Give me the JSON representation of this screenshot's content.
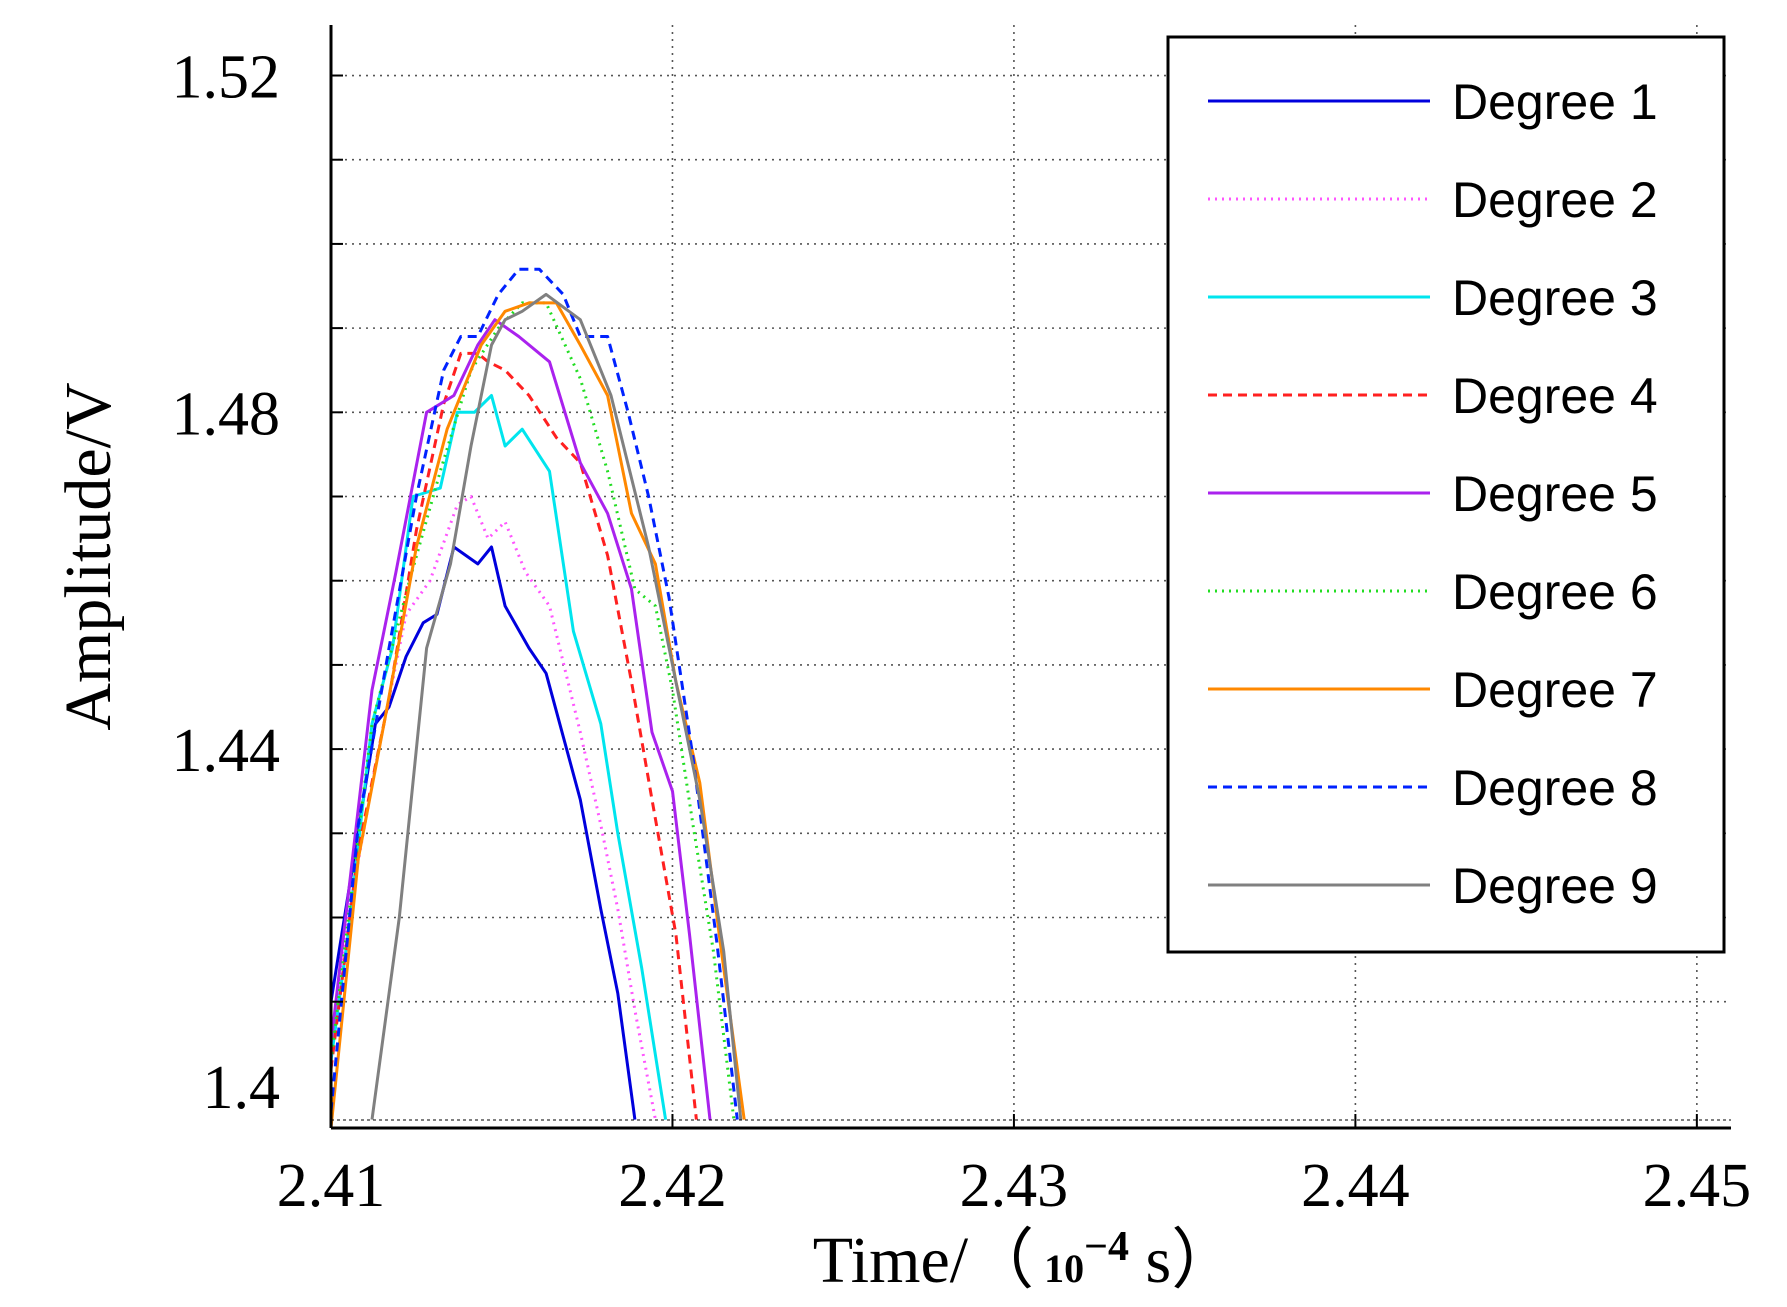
{
  "chart_data": {
    "type": "line",
    "title": "",
    "xlabel": "Time/（10^-4 s）",
    "xlabel_parts": {
      "prefix": "Time/（",
      "base": "10",
      "exponent": "−4",
      "suffix": " s）"
    },
    "ylabel": "Amplitude/V",
    "xlim": [
      2.41,
      2.451
    ],
    "ylim": [
      1.395,
      1.526
    ],
    "xticks": [
      2.41,
      2.42,
      2.43,
      2.44,
      2.45
    ],
    "xtick_labels": [
      "2.41",
      "2.42",
      "2.43",
      "2.44",
      "2.45"
    ],
    "yticks_grid": [
      1.41,
      1.42,
      1.43,
      1.44,
      1.45,
      1.46,
      1.47,
      1.48,
      1.49,
      1.5,
      1.51,
      1.52
    ],
    "ytick_labels": [
      {
        "value": 1.52,
        "label": "1.52"
      },
      {
        "value": 1.48,
        "label": "1.48"
      },
      {
        "value": 1.44,
        "label": "1.44"
      },
      {
        "value": 1.4,
        "label": "1.4"
      }
    ],
    "grid": true,
    "legend_position": "top-right",
    "series": [
      {
        "name": "Degree 1",
        "color": "#0000dd",
        "dash": "solid",
        "points": [
          [
            2.41,
            1.41
          ],
          [
            2.4113,
            1.443
          ],
          [
            2.4117,
            1.445
          ],
          [
            2.4122,
            1.451
          ],
          [
            2.4127,
            1.455
          ],
          [
            2.4131,
            1.456
          ],
          [
            2.4136,
            1.464
          ],
          [
            2.4143,
            1.462
          ],
          [
            2.4147,
            1.464
          ],
          [
            2.4151,
            1.457
          ],
          [
            2.4158,
            1.452
          ],
          [
            2.4163,
            1.449
          ],
          [
            2.4173,
            1.434
          ],
          [
            2.4179,
            1.421
          ],
          [
            2.4184,
            1.411
          ],
          [
            2.4189,
            1.396
          ]
        ]
      },
      {
        "name": "Degree 2",
        "color": "#ff55ff",
        "dash": "dotted",
        "points": [
          [
            2.41,
            1.405
          ],
          [
            2.4105,
            1.42
          ],
          [
            2.4113,
            1.438
          ],
          [
            2.4122,
            1.456
          ],
          [
            2.4129,
            1.46
          ],
          [
            2.4137,
            1.469
          ],
          [
            2.4141,
            1.47
          ],
          [
            2.4146,
            1.465
          ],
          [
            2.4151,
            1.467
          ],
          [
            2.4157,
            1.461
          ],
          [
            2.4164,
            1.457
          ],
          [
            2.4173,
            1.442
          ],
          [
            2.4179,
            1.431
          ],
          [
            2.4184,
            1.421
          ],
          [
            2.4189,
            1.409
          ],
          [
            2.4195,
            1.396
          ]
        ]
      },
      {
        "name": "Degree 3",
        "color": "#00e5ee",
        "dash": "solid",
        "points": [
          [
            2.41,
            1.403
          ],
          [
            2.4105,
            1.418
          ],
          [
            2.4112,
            1.443
          ],
          [
            2.4118,
            1.452
          ],
          [
            2.4124,
            1.47
          ],
          [
            2.4132,
            1.471
          ],
          [
            2.4137,
            1.48
          ],
          [
            2.4142,
            1.48
          ],
          [
            2.4147,
            1.482
          ],
          [
            2.4151,
            1.476
          ],
          [
            2.4156,
            1.478
          ],
          [
            2.4164,
            1.473
          ],
          [
            2.4171,
            1.454
          ],
          [
            2.4179,
            1.443
          ],
          [
            2.4184,
            1.43
          ],
          [
            2.4191,
            1.414
          ],
          [
            2.4198,
            1.396
          ]
        ]
      },
      {
        "name": "Degree 4",
        "color": "#ff2020",
        "dash": "dashed",
        "points": [
          [
            2.41,
            1.402
          ],
          [
            2.4108,
            1.428
          ],
          [
            2.4117,
            1.446
          ],
          [
            2.4125,
            1.466
          ],
          [
            2.4133,
            1.481
          ],
          [
            2.4138,
            1.487
          ],
          [
            2.4143,
            1.487
          ],
          [
            2.4146,
            1.486
          ],
          [
            2.4151,
            1.485
          ],
          [
            2.4158,
            1.482
          ],
          [
            2.4166,
            1.477
          ],
          [
            2.4173,
            1.474
          ],
          [
            2.4181,
            1.463
          ],
          [
            2.4188,
            1.448
          ],
          [
            2.4194,
            1.434
          ],
          [
            2.4201,
            1.418
          ],
          [
            2.4207,
            1.396
          ]
        ]
      },
      {
        "name": "Degree 5",
        "color": "#aa22ee",
        "dash": "solid",
        "points": [
          [
            2.41,
            1.405
          ],
          [
            2.4112,
            1.447
          ],
          [
            2.4119,
            1.461
          ],
          [
            2.4128,
            1.48
          ],
          [
            2.4136,
            1.482
          ],
          [
            2.4143,
            1.488
          ],
          [
            2.4148,
            1.491
          ],
          [
            2.4155,
            1.489
          ],
          [
            2.4164,
            1.486
          ],
          [
            2.4173,
            1.474
          ],
          [
            2.4181,
            1.468
          ],
          [
            2.4188,
            1.459
          ],
          [
            2.4194,
            1.442
          ],
          [
            2.42,
            1.435
          ],
          [
            2.4205,
            1.418
          ],
          [
            2.4211,
            1.396
          ]
        ]
      },
      {
        "name": "Degree 6",
        "color": "#22dd22",
        "dash": "dotted",
        "points": [
          [
            2.41,
            1.403
          ],
          [
            2.4112,
            1.443
          ],
          [
            2.4123,
            1.46
          ],
          [
            2.4132,
            1.473
          ],
          [
            2.4141,
            1.485
          ],
          [
            2.4149,
            1.49
          ],
          [
            2.4156,
            1.493
          ],
          [
            2.4163,
            1.493
          ],
          [
            2.4173,
            1.484
          ],
          [
            2.4181,
            1.473
          ],
          [
            2.4189,
            1.459
          ],
          [
            2.4195,
            1.457
          ],
          [
            2.42,
            1.447
          ],
          [
            2.4206,
            1.431
          ],
          [
            2.4212,
            1.416
          ],
          [
            2.4218,
            1.396
          ]
        ]
      },
      {
        "name": "Degree 7",
        "color": "#ff8800",
        "dash": "solid",
        "points": [
          [
            2.41,
            1.395
          ],
          [
            2.4108,
            1.427
          ],
          [
            2.4116,
            1.444
          ],
          [
            2.4125,
            1.464
          ],
          [
            2.4134,
            1.478
          ],
          [
            2.4144,
            1.488
          ],
          [
            2.4151,
            1.492
          ],
          [
            2.4158,
            1.493
          ],
          [
            2.4166,
            1.493
          ],
          [
            2.4173,
            1.488
          ],
          [
            2.4181,
            1.482
          ],
          [
            2.4188,
            1.468
          ],
          [
            2.4195,
            1.462
          ],
          [
            2.4201,
            1.448
          ],
          [
            2.4208,
            1.436
          ],
          [
            2.4214,
            1.417
          ],
          [
            2.4221,
            1.396
          ]
        ]
      },
      {
        "name": "Degree 8",
        "color": "#0022ff",
        "dash": "dashed",
        "points": [
          [
            2.41,
            1.397
          ],
          [
            2.4108,
            1.431
          ],
          [
            2.4117,
            1.452
          ],
          [
            2.4125,
            1.47
          ],
          [
            2.4133,
            1.485
          ],
          [
            2.4138,
            1.489
          ],
          [
            2.4143,
            1.489
          ],
          [
            2.4149,
            1.494
          ],
          [
            2.4155,
            1.497
          ],
          [
            2.4161,
            1.497
          ],
          [
            2.4168,
            1.494
          ],
          [
            2.4173,
            1.489
          ],
          [
            2.4181,
            1.489
          ],
          [
            2.4187,
            1.48
          ],
          [
            2.4193,
            1.47
          ],
          [
            2.4199,
            1.458
          ],
          [
            2.4206,
            1.439
          ],
          [
            2.4213,
            1.417
          ],
          [
            2.4219,
            1.396
          ]
        ]
      },
      {
        "name": "Degree 9",
        "color": "#808080",
        "dash": "solid",
        "points": [
          [
            2.4112,
            1.396
          ],
          [
            2.412,
            1.42
          ],
          [
            2.4128,
            1.452
          ],
          [
            2.4135,
            1.462
          ],
          [
            2.4141,
            1.476
          ],
          [
            2.4147,
            1.488
          ],
          [
            2.4151,
            1.491
          ],
          [
            2.4156,
            1.492
          ],
          [
            2.4163,
            1.494
          ],
          [
            2.4173,
            1.491
          ],
          [
            2.4182,
            1.482
          ],
          [
            2.4193,
            1.464
          ],
          [
            2.4201,
            1.448
          ],
          [
            2.4208,
            1.434
          ],
          [
            2.4215,
            1.416
          ],
          [
            2.422,
            1.396
          ]
        ]
      }
    ]
  }
}
